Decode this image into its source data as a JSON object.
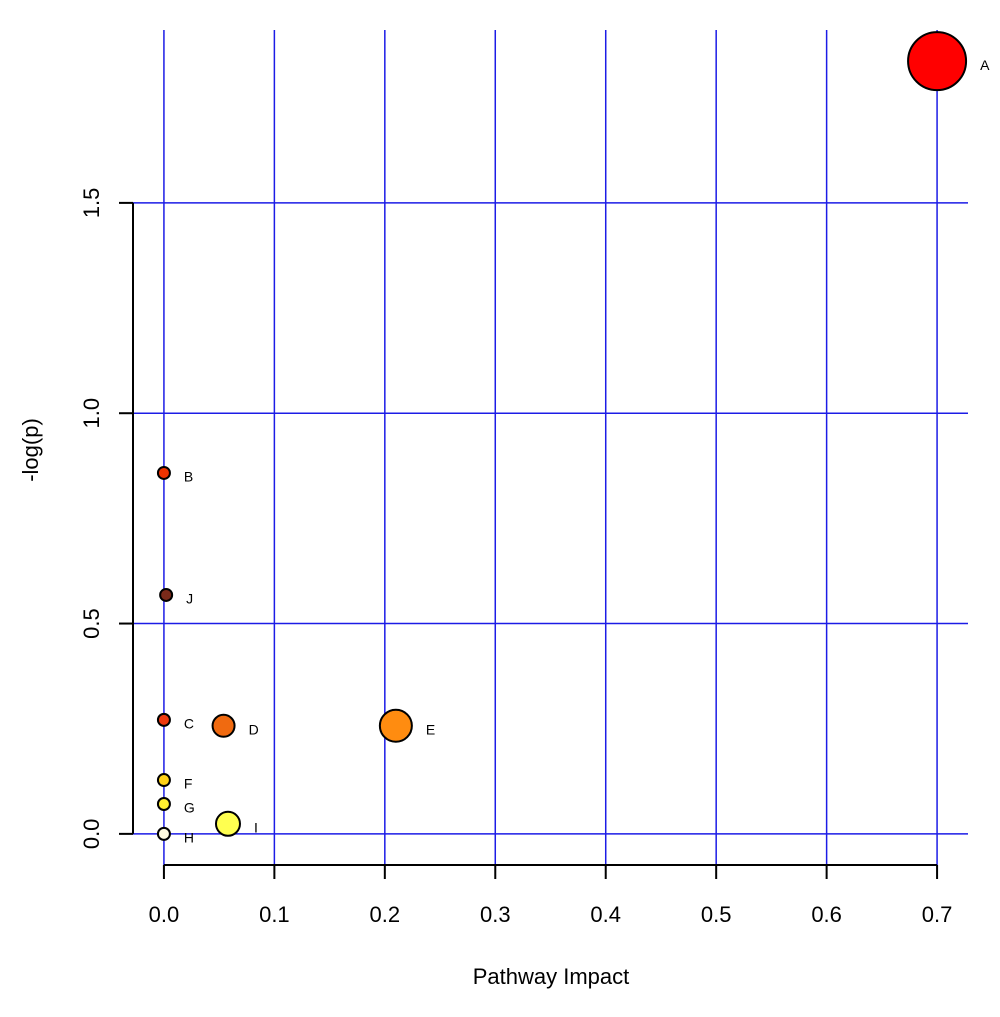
{
  "chart_data": {
    "type": "scatter",
    "x_label": "Pathway Impact",
    "y_label": "-log(p)",
    "labels": [
      "A",
      "B",
      "C",
      "D",
      "E",
      "F",
      "G",
      "H",
      "I",
      "J"
    ],
    "x": [
      0.7,
      0,
      0,
      0.054,
      0.21,
      0,
      0,
      0,
      0.058,
      0.002
    ],
    "y": [
      1.837,
      0.858,
      0.271,
      0.257,
      0.257,
      0.128,
      0.071,
      0,
      0.024,
      0.568
    ],
    "sizes": [
      29,
      6,
      6,
      11,
      16,
      6,
      6,
      6,
      12,
      6
    ],
    "colors": [
      "#ff0000",
      "#ee3300",
      "#ee3a10",
      "#f06a10",
      "#ff8c10",
      "#ffd21a",
      "#ffee30",
      "#fffbe0",
      "#ffff50",
      "#7a2a1a"
    ],
    "xlim": [
      -0.028,
      0.728
    ],
    "ylim": [
      -0.074,
      1.911
    ],
    "xticks": [
      {
        "value": 0,
        "label": "0.0"
      },
      0.1,
      0.2,
      0.3,
      0.4,
      0.5,
      0.6,
      0.7
    ],
    "yticks": [
      {
        "value": 0,
        "label": "0.0"
      },
      0.5,
      {
        "value": 1,
        "label": "1.0"
      },
      1.5
    ],
    "grid": true,
    "grid_color": "#1c1ce6"
  }
}
